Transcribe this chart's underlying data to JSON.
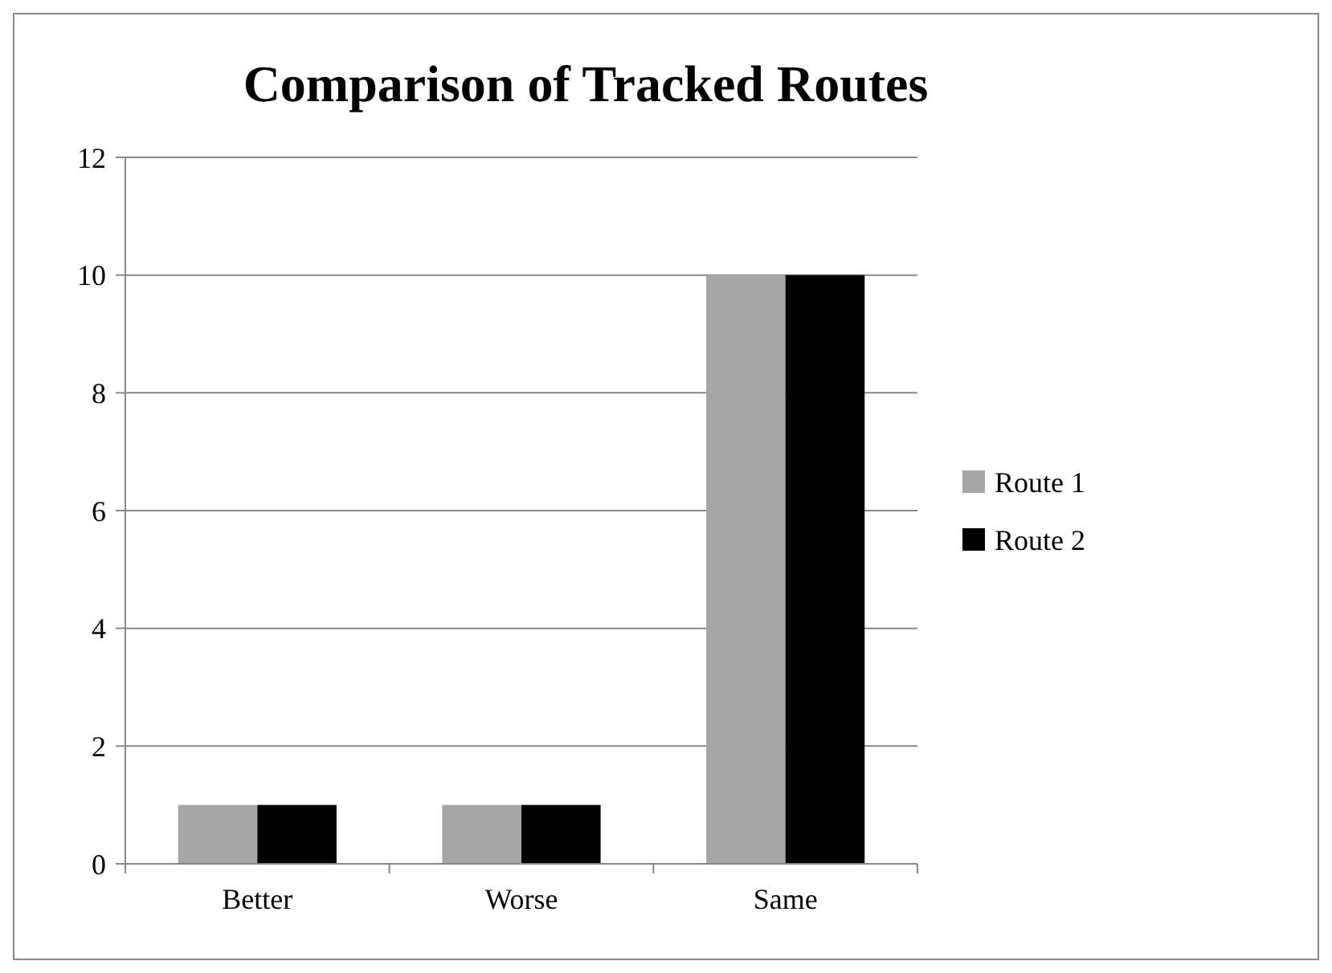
{
  "chart_data": {
    "type": "bar",
    "title": "Comparison of Tracked Routes",
    "categories": [
      "Better",
      "Worse",
      "Same"
    ],
    "series": [
      {
        "name": "Route 1",
        "color": "#a6a6a6",
        "values": [
          1,
          1,
          10
        ]
      },
      {
        "name": "Route 2",
        "color": "#000000",
        "values": [
          1,
          1,
          10
        ]
      }
    ],
    "ylim": [
      0,
      12
    ],
    "yticks": [
      0,
      2,
      4,
      6,
      8,
      10,
      12
    ],
    "grid": "y",
    "legend": "right"
  }
}
